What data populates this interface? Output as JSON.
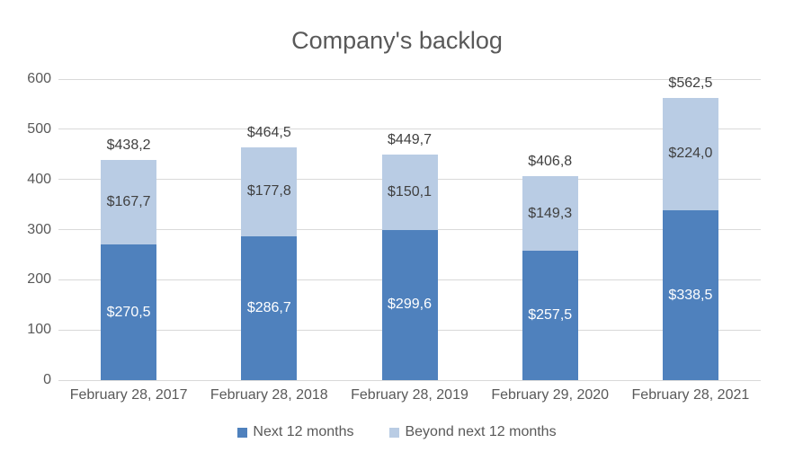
{
  "chart_data": {
    "type": "bar",
    "stacked": true,
    "title": "Company's backlog",
    "categories": [
      "February 28, 2017",
      "February 28, 2018",
      "February 28, 2019",
      "February 29, 2020",
      "February 28, 2021"
    ],
    "series": [
      {
        "name": "Next 12 months",
        "color": "#4f81bd",
        "label_color": "#ffffff",
        "values": [
          270.5,
          286.7,
          299.6,
          257.5,
          338.5
        ],
        "labels": [
          "$270,5",
          "$286,7",
          "$299,6",
          "$257,5",
          "$338,5"
        ]
      },
      {
        "name": "Beyond next 12 months",
        "color": "#b9cce4",
        "label_color": "#404040",
        "values": [
          167.7,
          177.8,
          150.1,
          149.3,
          224.0
        ],
        "labels": [
          "$167,7",
          "$177,8",
          "$150,1",
          "$149,3",
          "$224,0"
        ]
      }
    ],
    "totals": [
      438.2,
      464.5,
      449.7,
      406.8,
      562.5
    ],
    "total_labels": [
      "$438,2",
      "$464,5",
      "$449,7",
      "$406,8",
      "$562,5"
    ],
    "ylim": [
      0,
      600
    ],
    "yticks": [
      0,
      100,
      200,
      300,
      400,
      500,
      600
    ],
    "grid": true,
    "legend_position": "bottom",
    "colors": {
      "gridline": "#d9d9d9",
      "axis_text": "#595959",
      "title_text": "#595959",
      "total_label": "#404040"
    }
  }
}
